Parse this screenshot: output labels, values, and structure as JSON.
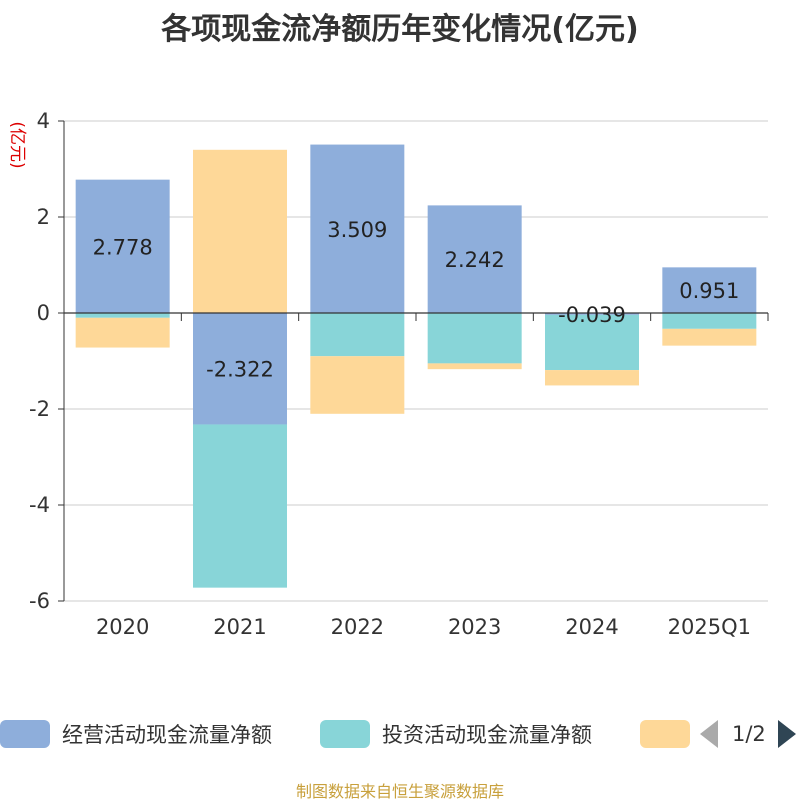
{
  "chart_data": {
    "type": "bar",
    "stacked": true,
    "title": "各项现金流净额历年变化情况(亿元)",
    "ylabel": "(亿元)",
    "xlabel": "",
    "categories": [
      "2020",
      "2021",
      "2022",
      "2023",
      "2024",
      "2025Q1"
    ],
    "ylim": [
      -6,
      4
    ],
    "yticks": [
      4,
      2,
      0,
      -2,
      -4,
      -6
    ],
    "grid": true,
    "series": [
      {
        "name": "经营活动现金流量净额",
        "color": "#8eaedb",
        "values": [
          2.778,
          -2.322,
          3.509,
          2.242,
          -0.039,
          0.951
        ],
        "labels": [
          "2.778",
          "-2.322",
          "3.509",
          "2.242",
          "-0.039",
          "0.951"
        ]
      },
      {
        "name": "投资活动现金流量净额",
        "color": "#88d5d8",
        "values": [
          -0.1,
          -3.4,
          -0.9,
          -1.05,
          -1.15,
          -0.33
        ]
      },
      {
        "name": "",
        "color": "#fed898",
        "values": [
          -0.62,
          3.4,
          -1.2,
          -0.12,
          -0.32,
          -0.35
        ]
      }
    ],
    "legend_position": "bottom"
  },
  "legend": {
    "items": [
      {
        "label": "经营活动现金流量净额",
        "color": "#8eaedb"
      },
      {
        "label": "投资活动现金流量净额",
        "color": "#88d5d8"
      },
      {
        "label": "",
        "color": "#fed898"
      }
    ],
    "page_text": "1/2"
  },
  "source_note": "制图数据来自恒生聚源数据库"
}
